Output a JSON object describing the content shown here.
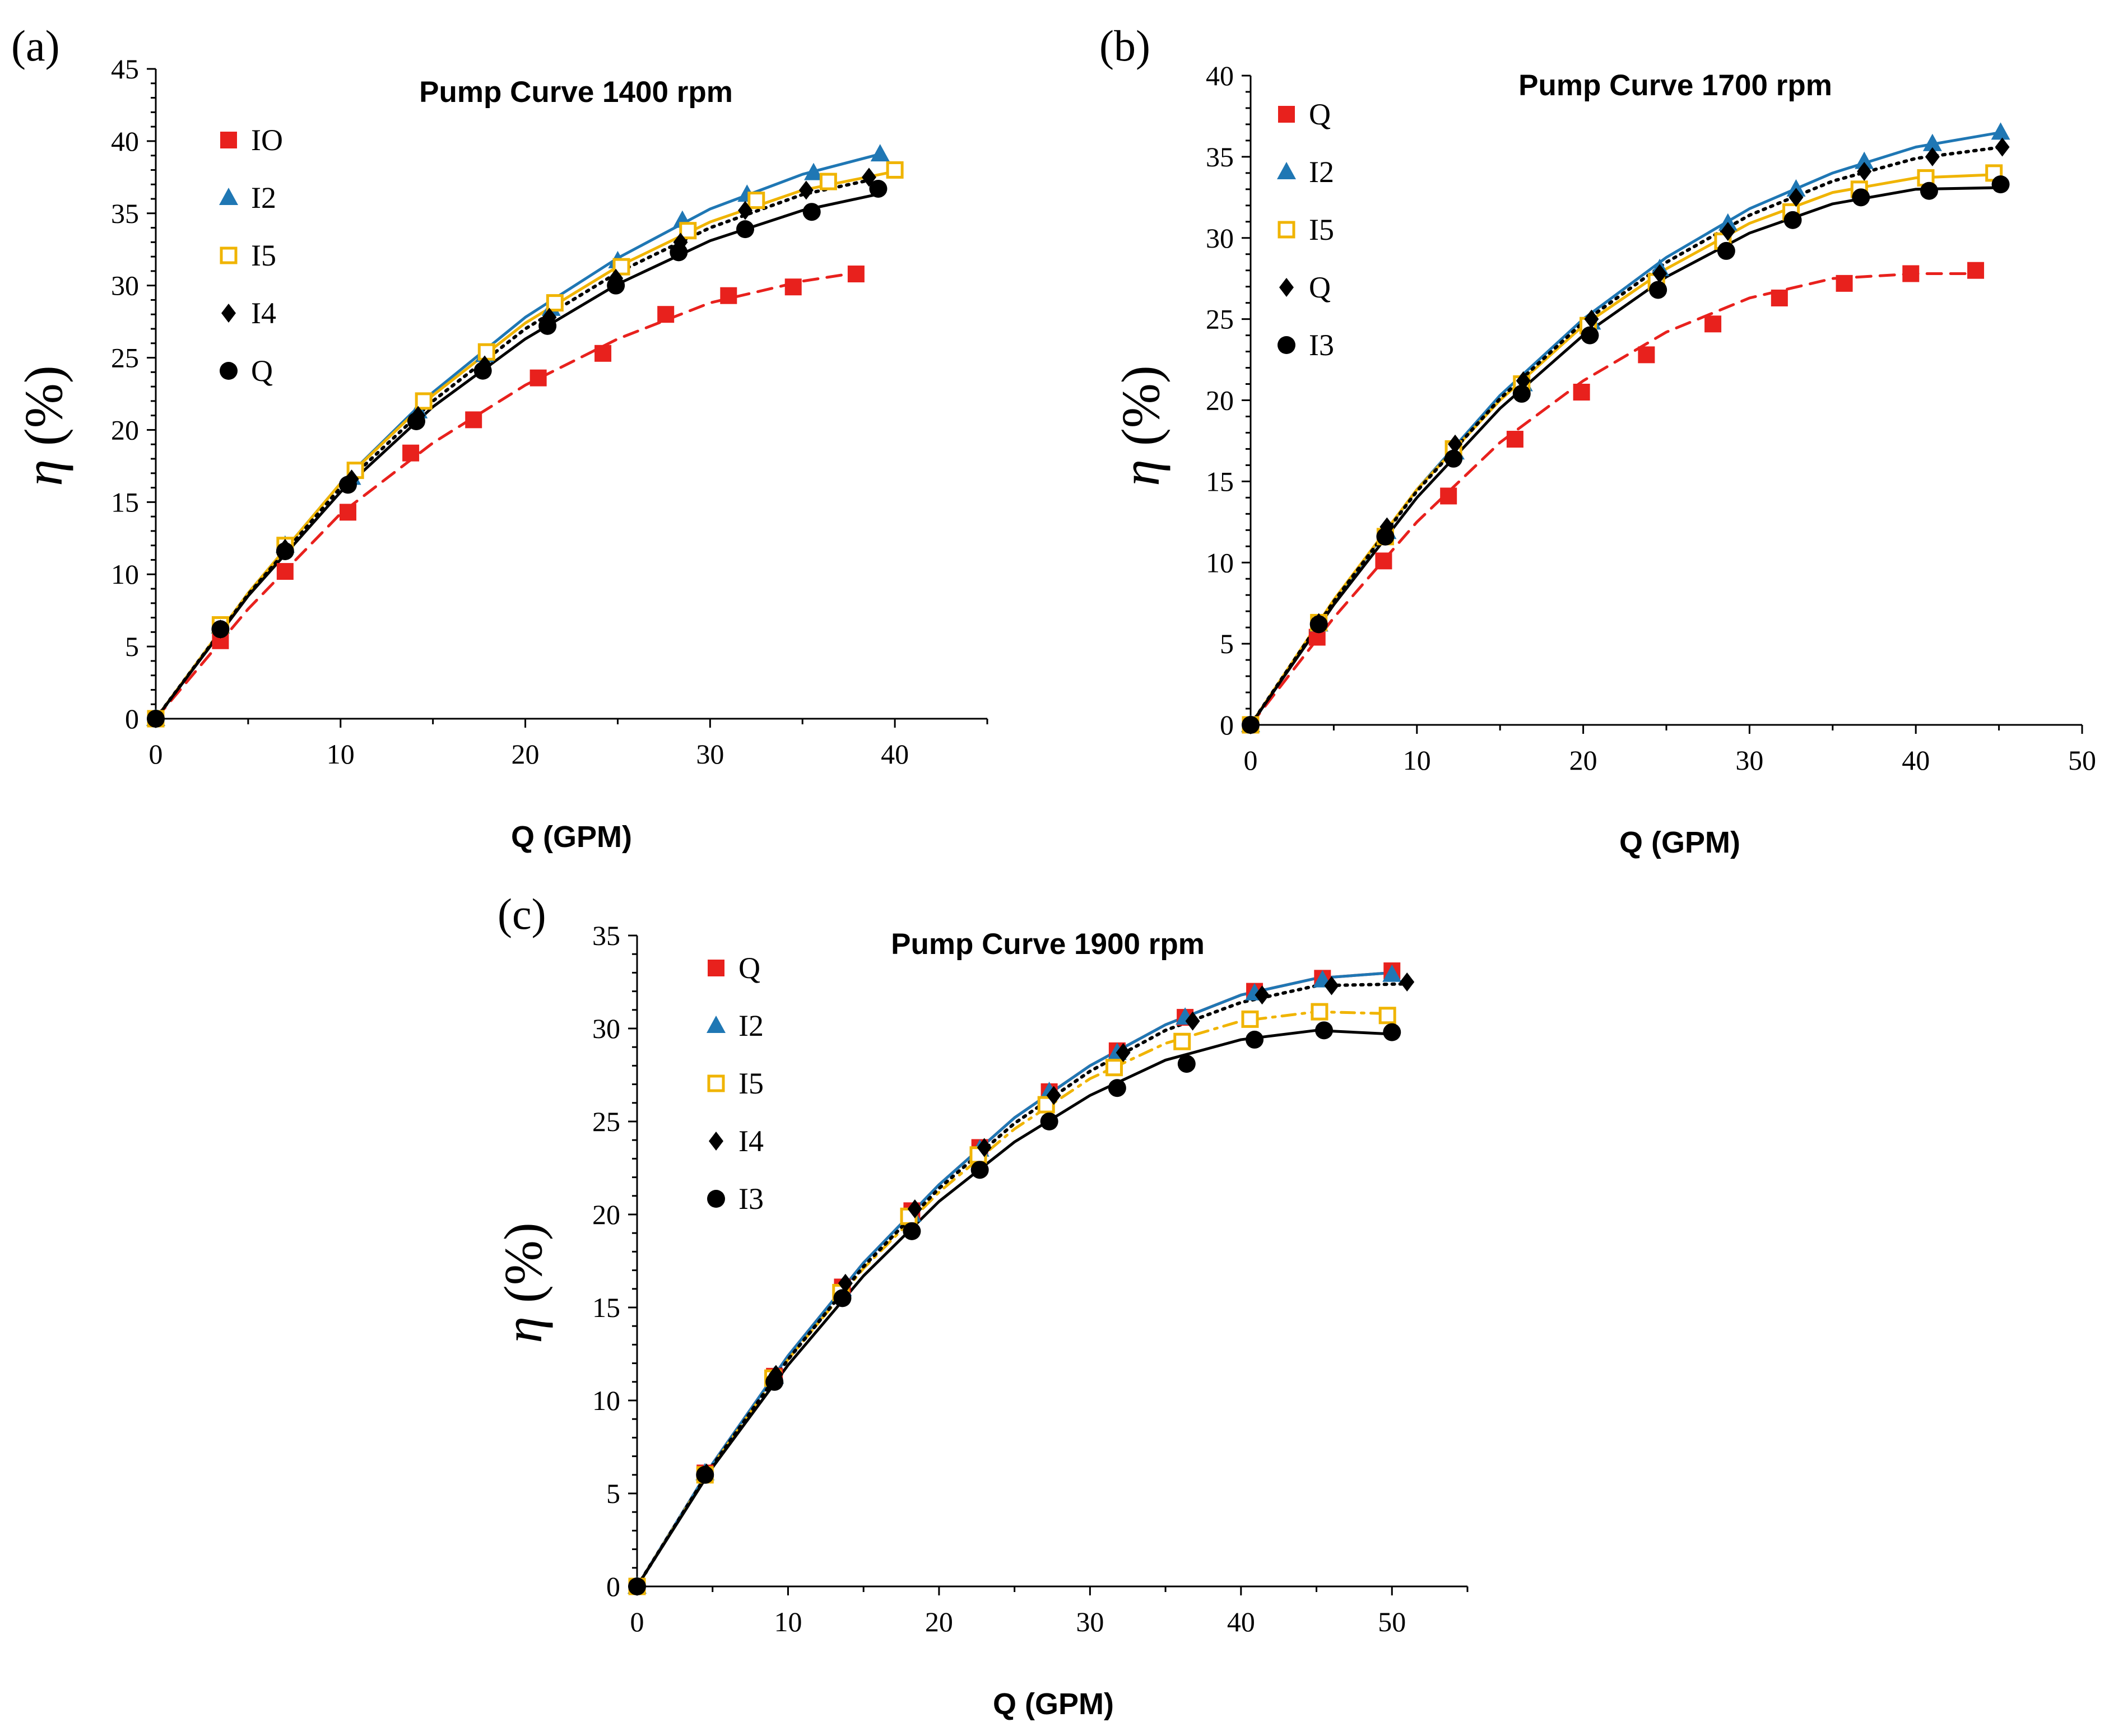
{
  "chart_data": [
    {
      "id": "a",
      "type": "scatter",
      "panel_label": "(a)",
      "title": "Pump Curve 1400 rpm",
      "xlabel": "Q (GPM)",
      "ylabel_symbol": "η",
      "ylabel_unit": "(%)",
      "xlim": [
        0,
        45
      ],
      "ylim": [
        0,
        45
      ],
      "xticks": [
        0,
        10,
        20,
        30,
        40
      ],
      "yticks": [
        0,
        5,
        10,
        15,
        20,
        25,
        30,
        35,
        40,
        45
      ],
      "legend_position": "top-left",
      "series": [
        {
          "name": "IO",
          "marker": "square",
          "color": "#e8211d",
          "line": "dashed",
          "x": [
            0,
            3.5,
            7,
            10.4,
            13.8,
            17.2,
            20.7,
            24.2,
            27.6,
            31.0,
            34.5,
            37.9
          ],
          "y": [
            0,
            5.4,
            10.2,
            14.3,
            18.4,
            20.7,
            23.6,
            25.3,
            28.0,
            29.3,
            29.9,
            30.8
          ],
          "fit_x": [
            0,
            5,
            10,
            15,
            20,
            25,
            30,
            35,
            38
          ],
          "fit_y": [
            0,
            7.6,
            14.2,
            19.1,
            23.1,
            26.3,
            28.8,
            30.3,
            30.9
          ]
        },
        {
          "name": "I2",
          "marker": "triangle",
          "color": "#1f77b4",
          "line": "solid",
          "x": [
            0,
            3.5,
            7,
            10.6,
            14.2,
            17.8,
            21.4,
            25.0,
            28.5,
            32.0,
            35.6,
            39.2
          ],
          "y": [
            0,
            6.4,
            12.0,
            16.7,
            21.3,
            25.2,
            28.4,
            31.7,
            34.5,
            36.3,
            37.8,
            39.1
          ],
          "fit_x": [
            0,
            5,
            10,
            15,
            20,
            25,
            30,
            35,
            39.2
          ],
          "fit_y": [
            0,
            8.7,
            16.3,
            22.6,
            27.8,
            31.9,
            35.3,
            37.7,
            39.1
          ]
        },
        {
          "name": "I5",
          "marker": "square-open",
          "color": "#f0b400",
          "line": "solid",
          "x": [
            0,
            3.5,
            7,
            10.8,
            14.5,
            17.9,
            21.6,
            25.2,
            28.8,
            32.5,
            36.4,
            40.0
          ],
          "y": [
            0,
            6.5,
            12.0,
            17.2,
            22.0,
            25.4,
            28.8,
            31.3,
            33.8,
            35.9,
            37.2,
            38.0
          ],
          "fit_x": [
            0,
            5,
            10,
            15,
            20,
            25,
            30,
            35,
            40
          ],
          "fit_y": [
            0,
            8.7,
            16.3,
            22.4,
            27.4,
            31.3,
            34.4,
            36.6,
            37.9
          ]
        },
        {
          "name": "I4",
          "marker": "diamond",
          "color": "#000000",
          "line": "dotted",
          "x": [
            0,
            3.5,
            7,
            10.6,
            14.2,
            17.8,
            21.3,
            24.9,
            28.4,
            31.9,
            35.2,
            38.6
          ],
          "y": [
            0,
            6.2,
            11.8,
            16.6,
            21.0,
            24.5,
            27.8,
            30.5,
            33.0,
            35.2,
            36.6,
            37.5
          ],
          "fit_x": [
            0,
            5,
            10,
            15,
            20,
            25,
            30,
            35,
            39
          ],
          "fit_y": [
            0,
            8.6,
            16.0,
            22.0,
            27.0,
            30.9,
            34.0,
            36.3,
            37.4
          ]
        },
        {
          "name": "Q",
          "marker": "circle",
          "color": "#000000",
          "line": "solid",
          "x": [
            0,
            3.5,
            7,
            10.4,
            14.1,
            17.7,
            21.2,
            24.9,
            28.3,
            31.9,
            35.5,
            39.1
          ],
          "y": [
            0,
            6.2,
            11.6,
            16.2,
            20.6,
            24.1,
            27.2,
            30.0,
            32.3,
            33.9,
            35.1,
            36.7
          ],
          "fit_x": [
            0,
            5,
            10,
            15,
            20,
            25,
            30,
            35,
            39
          ],
          "fit_y": [
            0,
            8.5,
            15.7,
            21.6,
            26.3,
            30.1,
            33.1,
            35.2,
            36.3
          ]
        }
      ]
    },
    {
      "id": "b",
      "type": "scatter",
      "panel_label": "(b)",
      "title": "Pump Curve 1700 rpm",
      "xlabel": "Q (GPM)",
      "ylabel_symbol": "η",
      "ylabel_unit": "(%)",
      "xlim": [
        0,
        50
      ],
      "ylim": [
        0,
        40
      ],
      "xticks": [
        0,
        10,
        20,
        30,
        40,
        50
      ],
      "yticks": [
        0,
        5,
        10,
        15,
        20,
        25,
        30,
        35,
        40
      ],
      "legend_position": "top-left",
      "series": [
        {
          "name": "Q",
          "marker": "square",
          "color": "#e8211d",
          "line": "dashed",
          "x": [
            0,
            4.0,
            8.0,
            11.9,
            15.9,
            19.9,
            23.8,
            27.8,
            31.8,
            35.7,
            39.7,
            43.6
          ],
          "y": [
            0,
            5.4,
            10.1,
            14.1,
            17.6,
            20.5,
            22.8,
            24.7,
            26.3,
            27.2,
            27.8,
            28.0
          ],
          "fit_x": [
            0,
            5,
            10,
            15,
            20,
            25,
            30,
            35,
            40,
            43.6
          ],
          "fit_y": [
            0,
            6.6,
            12.5,
            17.4,
            21.2,
            24.2,
            26.3,
            27.5,
            27.8,
            27.8
          ]
        },
        {
          "name": "I2",
          "marker": "triangle",
          "color": "#1f77b4",
          "line": "solid",
          "x": [
            0,
            4.1,
            8.2,
            12.3,
            16.4,
            20.5,
            24.6,
            28.7,
            32.8,
            36.9,
            41.0,
            45.1
          ],
          "y": [
            0,
            6.2,
            11.9,
            16.8,
            21.0,
            24.8,
            28.1,
            30.9,
            33.0,
            34.7,
            35.8,
            36.5
          ],
          "fit_x": [
            0,
            5,
            10,
            15,
            20,
            25,
            30,
            35,
            40,
            45.1
          ],
          "fit_y": [
            0,
            7.6,
            14.5,
            20.3,
            25.0,
            28.8,
            31.8,
            34.0,
            35.6,
            36.5
          ]
        },
        {
          "name": "I5",
          "marker": "square-open",
          "color": "#f0b400",
          "line": "solid",
          "x": [
            0,
            4.1,
            8.1,
            12.2,
            16.3,
            20.3,
            24.4,
            28.4,
            32.5,
            36.6,
            40.6,
            44.7
          ],
          "y": [
            0,
            6.3,
            11.6,
            17.0,
            21.0,
            24.6,
            27.3,
            29.8,
            31.6,
            33.0,
            33.7,
            34.0
          ],
          "fit_x": [
            0,
            5,
            10,
            15,
            20,
            25,
            30,
            35,
            40,
            44.7
          ],
          "fit_y": [
            0,
            7.7,
            14.5,
            20.0,
            24.6,
            28.1,
            30.9,
            32.8,
            33.7,
            33.9
          ]
        },
        {
          "name": "Q",
          "marker": "diamond",
          "color": "#000000",
          "line": "dotted",
          "x": [
            0,
            4.1,
            8.2,
            12.3,
            16.4,
            20.5,
            24.6,
            28.7,
            32.8,
            36.9,
            41.0,
            45.2
          ],
          "y": [
            0,
            6.3,
            12.2,
            17.3,
            21.2,
            25.0,
            27.8,
            30.4,
            32.5,
            34.1,
            35.0,
            35.6
          ],
          "fit_x": [
            0,
            5,
            10,
            15,
            20,
            25,
            30,
            35,
            40,
            45.2
          ],
          "fit_y": [
            0,
            7.6,
            14.4,
            20.1,
            24.8,
            28.5,
            31.4,
            33.5,
            34.9,
            35.6
          ]
        },
        {
          "name": "I3",
          "marker": "circle",
          "color": "#000000",
          "line": "solid",
          "x": [
            0,
            4.1,
            8.1,
            12.2,
            16.3,
            20.4,
            24.5,
            28.6,
            32.6,
            36.7,
            40.8,
            45.1
          ],
          "y": [
            0,
            6.2,
            11.6,
            16.4,
            20.4,
            24.0,
            26.8,
            29.2,
            31.1,
            32.5,
            32.9,
            33.3
          ],
          "fit_x": [
            0,
            5,
            10,
            15,
            20,
            25,
            30,
            35,
            40,
            45.1
          ],
          "fit_y": [
            0,
            7.4,
            14.0,
            19.5,
            24.0,
            27.6,
            30.3,
            32.1,
            33.0,
            33.1
          ]
        }
      ]
    },
    {
      "id": "c",
      "type": "scatter",
      "panel_label": "(c)",
      "title": "Pump Curve 1900 rpm",
      "xlabel": "Q (GPM)",
      "ylabel_symbol": "η",
      "ylabel_unit": "(%)",
      "xlim": [
        0,
        55
      ],
      "ylim": [
        0,
        35
      ],
      "xticks": [
        0,
        10,
        20,
        30,
        40,
        50
      ],
      "yticks": [
        0,
        5,
        10,
        15,
        20,
        25,
        30,
        35
      ],
      "legend_position": "top-left",
      "series": [
        {
          "name": "Q",
          "marker": "square",
          "color": "#e8211d",
          "line": "solid",
          "x": [
            0,
            4.5,
            9.1,
            13.6,
            18.2,
            22.7,
            27.3,
            31.8,
            36.3,
            40.9,
            45.4,
            50.0
          ],
          "y": [
            0,
            6.1,
            11.3,
            16.1,
            20.2,
            23.6,
            26.6,
            28.8,
            30.6,
            32.0,
            32.7,
            33.1
          ],
          "fit_x": [
            0,
            5,
            10,
            15,
            20,
            25,
            30,
            35,
            40,
            45,
            50
          ],
          "fit_y": [
            0,
            6.6,
            12.4,
            17.4,
            21.6,
            25.2,
            28.0,
            30.2,
            31.8,
            32.7,
            33.0
          ]
        },
        {
          "name": "I2",
          "marker": "triangle",
          "color": "#1f77b4",
          "line": "solid",
          "x": [
            0,
            4.5,
            9.1,
            13.6,
            18.2,
            22.7,
            27.3,
            31.8,
            36.3,
            40.9,
            45.4,
            50.0
          ],
          "y": [
            0,
            6.1,
            11.3,
            16.0,
            20.0,
            23.5,
            26.6,
            28.7,
            30.6,
            31.9,
            32.6,
            32.9
          ],
          "fit_x": [
            0,
            5,
            10,
            15,
            20,
            25,
            30,
            35,
            40,
            45,
            50
          ],
          "fit_y": [
            0,
            6.6,
            12.4,
            17.4,
            21.6,
            25.2,
            28.0,
            30.2,
            31.8,
            32.7,
            33.0
          ]
        },
        {
          "name": "I5",
          "marker": "square-open",
          "color": "#f0b400",
          "line": "dashdot",
          "x": [
            0,
            4.5,
            9.0,
            13.5,
            18.0,
            22.6,
            27.1,
            31.6,
            36.1,
            40.6,
            45.2,
            49.7
          ],
          "y": [
            0,
            6.0,
            11.2,
            15.8,
            19.9,
            23.2,
            25.9,
            27.9,
            29.3,
            30.5,
            30.9,
            30.7
          ],
          "fit_x": [
            0,
            5,
            10,
            15,
            20,
            25,
            30,
            35,
            40,
            45,
            49.7
          ],
          "fit_y": [
            0,
            6.5,
            12.2,
            17.1,
            21.2,
            24.6,
            27.3,
            29.2,
            30.4,
            30.9,
            30.8
          ]
        },
        {
          "name": "I4",
          "marker": "diamond",
          "color": "#000000",
          "line": "dotted",
          "x": [
            0,
            4.6,
            9.2,
            13.8,
            18.4,
            23.0,
            27.6,
            32.2,
            36.8,
            41.4,
            46.0,
            51.0
          ],
          "y": [
            0,
            6.1,
            11.4,
            16.3,
            20.3,
            23.6,
            26.4,
            28.7,
            30.4,
            31.8,
            32.3,
            32.5
          ],
          "fit_x": [
            0,
            5,
            10,
            15,
            20,
            25,
            30,
            35,
            40,
            45,
            51
          ],
          "fit_y": [
            0,
            6.5,
            12.2,
            17.2,
            21.4,
            24.9,
            27.7,
            29.9,
            31.4,
            32.3,
            32.4
          ]
        },
        {
          "name": "I3",
          "marker": "circle",
          "color": "#000000",
          "line": "solid",
          "x": [
            0,
            4.5,
            9.1,
            13.6,
            18.2,
            22.7,
            27.3,
            31.8,
            36.4,
            40.9,
            45.5,
            50.0
          ],
          "y": [
            0,
            6.0,
            11.0,
            15.5,
            19.1,
            22.4,
            25.0,
            26.8,
            28.1,
            29.4,
            29.9,
            29.8
          ],
          "fit_x": [
            0,
            5,
            10,
            15,
            20,
            25,
            30,
            35,
            40,
            45,
            50
          ],
          "fit_y": [
            0,
            6.4,
            11.9,
            16.7,
            20.7,
            23.9,
            26.4,
            28.3,
            29.4,
            29.9,
            29.7
          ]
        }
      ]
    }
  ]
}
